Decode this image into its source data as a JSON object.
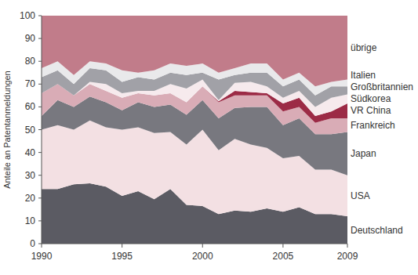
{
  "chart_data": {
    "type": "area",
    "stacked": true,
    "y_label": "Anteile an Patentanmeldungen",
    "x": [
      1990,
      1991,
      1992,
      1993,
      1994,
      1995,
      1996,
      1997,
      1998,
      1999,
      2000,
      2001,
      2002,
      2003,
      2004,
      2005,
      2006,
      2007,
      2008,
      2009
    ],
    "xlim": [
      1990,
      2009
    ],
    "xticks": [
      1990,
      1995,
      2000,
      2005,
      2009
    ],
    "ylim": [
      0,
      100
    ],
    "yticks": [
      0,
      10,
      20,
      30,
      40,
      50,
      60,
      70,
      80,
      90,
      100
    ],
    "series": [
      {
        "name": "Deutschland",
        "color": "#5b5b63",
        "values": [
          24,
          24,
          26,
          26.5,
          25,
          21,
          23,
          19.5,
          24,
          17,
          16.5,
          13,
          14.5,
          14,
          15.5,
          14,
          16,
          13,
          13,
          12
        ]
      },
      {
        "name": "USA",
        "color": "#f3e0e3",
        "values": [
          26,
          28,
          24,
          27.5,
          26,
          29,
          28,
          29,
          25,
          26.5,
          33.5,
          28,
          31.5,
          29.5,
          26.5,
          23.5,
          22.5,
          19.5,
          19.5,
          18
        ]
      },
      {
        "name": "Japan",
        "color": "#78787f",
        "values": [
          6,
          11,
          10,
          10.5,
          11,
          8.5,
          11,
          11.5,
          12,
          13,
          13,
          14,
          13.5,
          16.5,
          18,
          14.5,
          16.5,
          15.5,
          15.5,
          19
        ]
      },
      {
        "name": "Frankreich",
        "color": "#d9acb6",
        "values": [
          10,
          7,
          5,
          5.5,
          5,
          5.5,
          4,
          5,
          5,
          5.5,
          6,
          7,
          5.5,
          5,
          5,
          6,
          5,
          5,
          7,
          6
        ]
      },
      {
        "name": "VR China",
        "color": "#9c2b46",
        "values": [
          0,
          0,
          0,
          0,
          0,
          0,
          0,
          0,
          0,
          0,
          0,
          0.5,
          2,
          1.5,
          1,
          3.5,
          4,
          3,
          3,
          6.5
        ]
      },
      {
        "name": "Südkorea",
        "color": "#f6eaed",
        "values": [
          0,
          0,
          0,
          1,
          3,
          2,
          1,
          2,
          4,
          6,
          3,
          0.5,
          3.5,
          4.5,
          3,
          2.5,
          3,
          4,
          6,
          4
        ]
      },
      {
        "name": "Großbritannien",
        "color": "#a1a1a7",
        "values": [
          7,
          6,
          5,
          6,
          6,
          5,
          6,
          5,
          5,
          6,
          3,
          9,
          3.5,
          4,
          6,
          5,
          5,
          5,
          5,
          3.5
        ]
      },
      {
        "name": "Italien",
        "color": "#e9e9eb",
        "values": [
          4,
          4,
          4,
          3,
          3,
          5,
          2,
          4,
          4,
          4,
          4,
          3,
          3,
          4,
          4,
          3,
          3,
          4,
          2,
          3
        ]
      },
      {
        "name": "übrige",
        "color": "#c17c8a",
        "values": [
          23,
          20,
          26,
          20,
          21,
          24,
          25,
          24,
          21,
          22,
          21,
          25,
          23,
          21,
          21,
          28,
          25,
          31,
          29,
          28
        ]
      }
    ]
  }
}
